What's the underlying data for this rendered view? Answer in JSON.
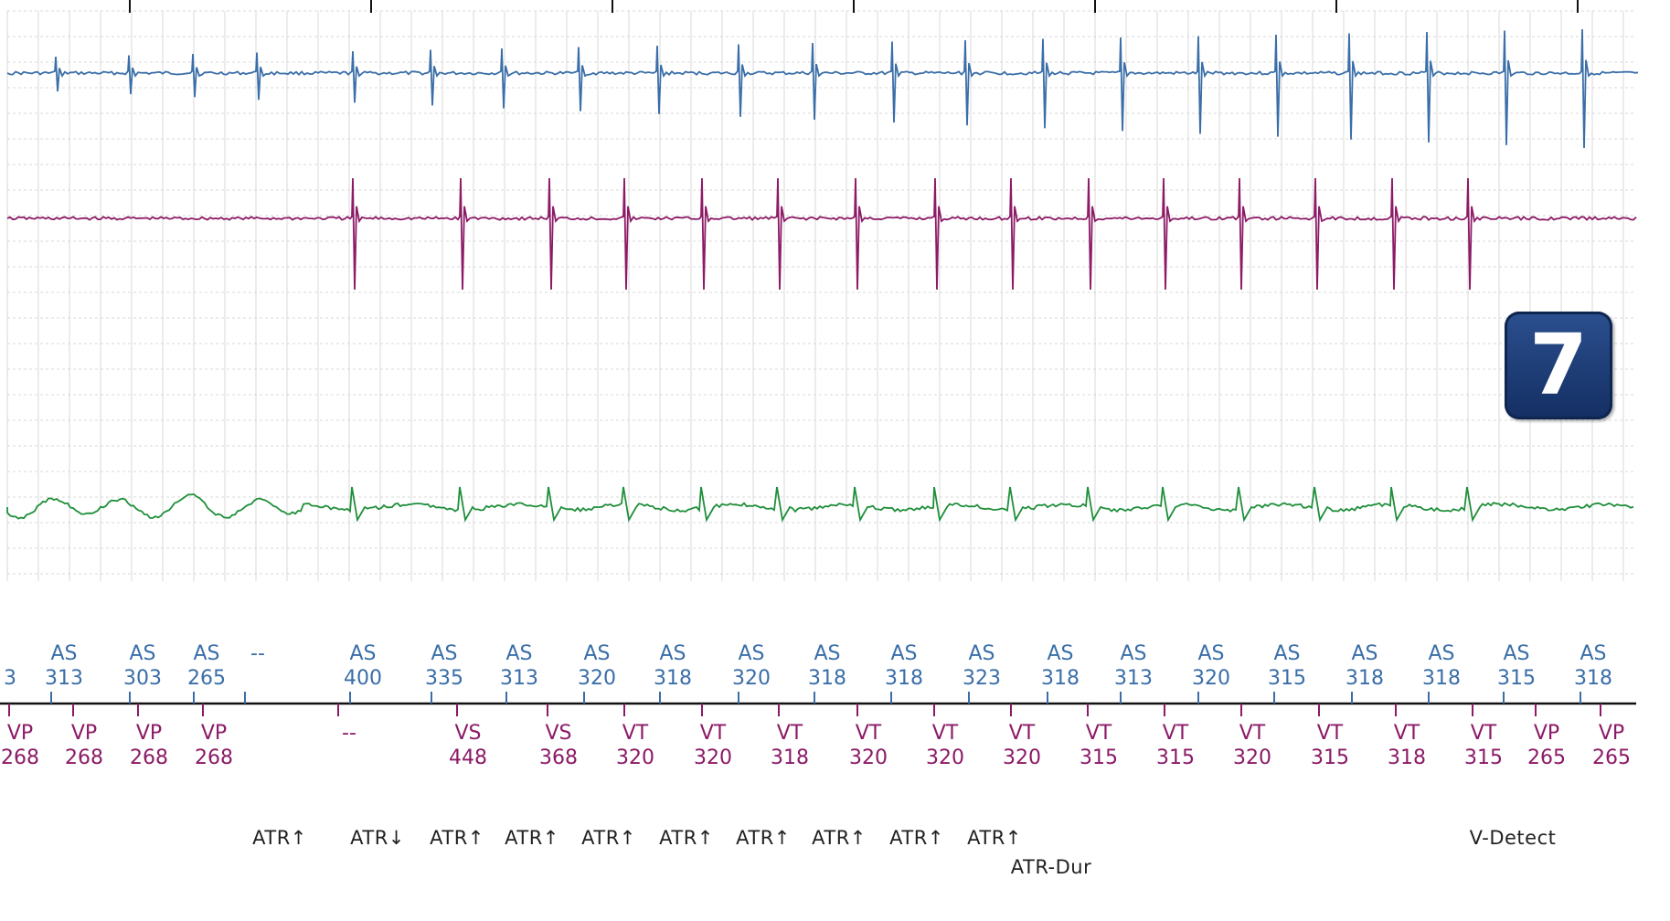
{
  "badge": {
    "label": "7",
    "color": "#1c3a72"
  },
  "chart_data": {
    "type": "line",
    "title": "",
    "xlabel": "",
    "ylabel": "",
    "grid": true,
    "colors": {
      "atrial": "#3a6ea8",
      "ventricular": "#8c1a66",
      "far_field": "#1f8f3a",
      "annotation": "#222222",
      "grid": "#d9d9d9"
    },
    "series": [
      {
        "name": "",
        "color": "#3a6ea8",
        "spike_times": [
          60,
          140,
          210,
          280,
          385,
          470,
          548,
          632,
          718,
          807,
          888,
          975,
          1055,
          1140,
          1225,
          1310,
          1395,
          1475,
          1560,
          1645,
          1730
        ]
      },
      {
        "name": "",
        "color": "#8c1a66",
        "spike_times": [
          385,
          503,
          600,
          682,
          767,
          850,
          935,
          1022,
          1105,
          1190,
          1272,
          1355,
          1438,
          1522,
          1605
        ]
      },
      {
        "name": "",
        "color": "#1f8f3a",
        "spike_times": [
          385,
          503,
          600,
          682,
          767,
          850,
          935,
          1022,
          1105,
          1190,
          1272,
          1355,
          1438,
          1522,
          1605
        ]
      }
    ],
    "atrial_markers": [
      {
        "label": "",
        "value": "3"
      },
      {
        "label": "AS",
        "value": "313"
      },
      {
        "label": "AS",
        "value": "303"
      },
      {
        "label": "AS",
        "value": "265"
      },
      {
        "label": "--",
        "value": ""
      },
      {
        "label": "AS",
        "value": "400"
      },
      {
        "label": "AS",
        "value": "335"
      },
      {
        "label": "AS",
        "value": "313"
      },
      {
        "label": "AS",
        "value": "320"
      },
      {
        "label": "AS",
        "value": "318"
      },
      {
        "label": "AS",
        "value": "320"
      },
      {
        "label": "AS",
        "value": "318"
      },
      {
        "label": "AS",
        "value": "318"
      },
      {
        "label": "AS",
        "value": "323"
      },
      {
        "label": "AS",
        "value": "318"
      },
      {
        "label": "AS",
        "value": "313"
      },
      {
        "label": "AS",
        "value": "320"
      },
      {
        "label": "AS",
        "value": "315"
      },
      {
        "label": "AS",
        "value": "318"
      },
      {
        "label": "AS",
        "value": "318"
      },
      {
        "label": "AS",
        "value": "315"
      },
      {
        "label": "AS",
        "value": "318"
      }
    ],
    "ventricular_markers": [
      {
        "label": "VP",
        "value": "268"
      },
      {
        "label": "VP",
        "value": "268"
      },
      {
        "label": "VP",
        "value": "268"
      },
      {
        "label": "VP",
        "value": "268"
      },
      {
        "label": "--",
        "value": ""
      },
      {
        "label": "VS",
        "value": "448"
      },
      {
        "label": "VS",
        "value": "368"
      },
      {
        "label": "VT",
        "value": "320"
      },
      {
        "label": "VT",
        "value": "320"
      },
      {
        "label": "VT",
        "value": "318"
      },
      {
        "label": "VT",
        "value": "320"
      },
      {
        "label": "VT",
        "value": "320"
      },
      {
        "label": "VT",
        "value": "320"
      },
      {
        "label": "VT",
        "value": "315"
      },
      {
        "label": "VT",
        "value": "315"
      },
      {
        "label": "VT",
        "value": "320"
      },
      {
        "label": "VT",
        "value": "315"
      },
      {
        "label": "VT",
        "value": "318"
      },
      {
        "label": "VT",
        "value": "315"
      },
      {
        "label": "VP",
        "value": "265"
      },
      {
        "label": "VP",
        "value": "265"
      }
    ],
    "annotations": [
      "ATR↑",
      "ATR↓",
      "ATR↑",
      "ATR↑",
      "ATR↑",
      "ATR↑",
      "ATR↑",
      "ATR↑",
      "ATR↑",
      "ATR↑",
      "ATR-Dur",
      "V-Detect"
    ]
  }
}
